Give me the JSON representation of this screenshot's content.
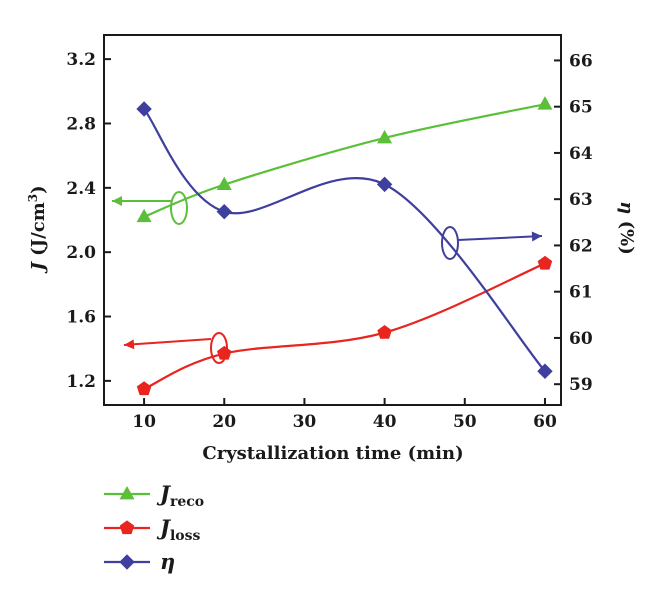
{
  "chart_data": {
    "type": "line",
    "x": [
      10,
      20,
      40,
      60
    ],
    "xlabel": "Crystallization time (min)",
    "xlim": [
      5,
      62
    ],
    "xticks": [
      10,
      20,
      30,
      40,
      50,
      60
    ],
    "ylabel_left": {
      "symbol": "J",
      "text": " (J/cm",
      "sup": "3",
      "close": ")"
    },
    "ylim_left": [
      1.05,
      3.35
    ],
    "yticks_left": [
      "1.2",
      "1.6",
      "2.0",
      "2.4",
      "2.8",
      "3.2"
    ],
    "ylabel_right": {
      "symbol": "η",
      "text": " (%)"
    },
    "ylim_right": [
      58.55,
      66.55
    ],
    "yticks_right": [
      "59",
      "60",
      "61",
      "62",
      "63",
      "64",
      "65",
      "66"
    ],
    "series": [
      {
        "name": "reco",
        "symbol": "J",
        "subscript": "reco",
        "axis": "left",
        "marker": "triangle",
        "color": "#5cbf3a",
        "values": [
          2.22,
          2.42,
          2.71,
          2.92
        ]
      },
      {
        "name": "loss",
        "symbol": "J",
        "subscript": "loss",
        "axis": "left",
        "marker": "pentagon",
        "color": "#e8251f",
        "values": [
          1.15,
          1.37,
          1.5,
          1.93
        ]
      },
      {
        "name": "η",
        "symbol": "η",
        "subscript": "",
        "axis": "right",
        "marker": "diamond",
        "color": "#3f3f9e",
        "values": [
          64.95,
          62.73,
          63.32,
          59.28
        ]
      }
    ],
    "legend": "bottom-left",
    "grid": false
  }
}
